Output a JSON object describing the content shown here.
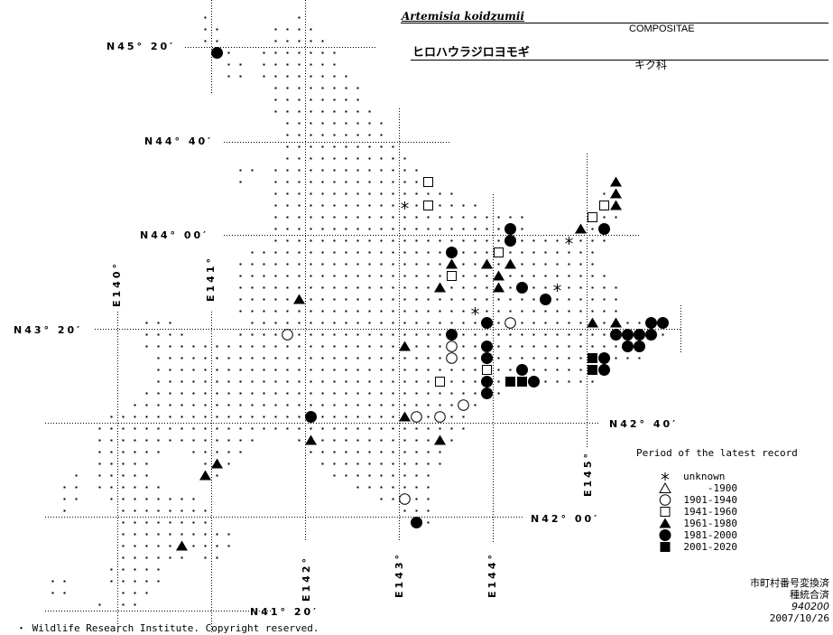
{
  "header": {
    "scientific_name": "Artemisia koidzumii",
    "family_latin": "COMPOSITAE",
    "japanese_name": "ヒロハウラジロヨモギ",
    "family_japanese": "キク科"
  },
  "graticule": {
    "latitudes": [
      "N45° 20′",
      "N44° 40′",
      "N44° 00′",
      "N43° 20′",
      "N42° 40′",
      "N42° 00′",
      "N41° 20′"
    ],
    "longitudes": [
      "E140°",
      "E141°",
      "E142°",
      "E143°",
      "E144°",
      "E145°"
    ]
  },
  "legend": {
    "title": "Period of the latest record",
    "items": [
      {
        "symbol": "asterisk",
        "label": "unknown"
      },
      {
        "symbol": "open-triangle",
        "label": "-1900"
      },
      {
        "symbol": "open-circle",
        "label": "1901-1940"
      },
      {
        "symbol": "open-square",
        "label": "1941-1960"
      },
      {
        "symbol": "filled-triangle",
        "label": "1961-1980"
      },
      {
        "symbol": "filled-circle",
        "label": "1981-2000"
      },
      {
        "symbol": "filled-square",
        "label": "2001-2020"
      }
    ]
  },
  "records": {
    "unknown": [
      [
        143.0625,
        44.2083
      ],
      [
        144.8125,
        43.9583
      ],
      [
        144.6875,
        43.625
      ],
      [
        143.8125,
        43.4583
      ]
    ],
    "-1900": [],
    "1901-1940": [
      [
        144.1875,
        43.375
      ],
      [
        143.5625,
        43.2083
      ],
      [
        143.5625,
        43.125
      ],
      [
        141.8125,
        43.2917
      ],
      [
        143.6875,
        42.7917
      ],
      [
        143.1875,
        42.7083
      ],
      [
        143.4375,
        42.7083
      ],
      [
        143.0625,
        42.125
      ]
    ],
    "1941-1960": [
      [
        143.3125,
        44.375
      ],
      [
        143.3125,
        44.2083
      ],
      [
        145.1875,
        44.2083
      ],
      [
        145.0625,
        44.125
      ],
      [
        144.0625,
        43.875
      ],
      [
        143.5625,
        43.7083
      ],
      [
        143.9375,
        43.0417
      ],
      [
        143.4375,
        42.9583
      ]
    ],
    "1961-1980": [
      [
        145.3125,
        44.375
      ],
      [
        145.3125,
        44.2917
      ],
      [
        145.3125,
        44.2083
      ],
      [
        144.9375,
        44.0417
      ],
      [
        143.5625,
        43.7917
      ],
      [
        143.9375,
        43.7917
      ],
      [
        144.1875,
        43.7917
      ],
      [
        144.0625,
        43.7083
      ],
      [
        143.4375,
        43.625
      ],
      [
        144.0625,
        43.625
      ],
      [
        141.9375,
        43.5417
      ],
      [
        145.0625,
        43.375
      ],
      [
        145.3125,
        43.375
      ],
      [
        143.0625,
        43.2083
      ],
      [
        143.0625,
        42.7083
      ],
      [
        142.0625,
        42.5417
      ],
      [
        143.4375,
        42.5417
      ],
      [
        141.0625,
        42.375
      ],
      [
        140.9375,
        42.2917
      ],
      [
        140.6875,
        41.7917
      ]
    ],
    "1981-2000": [
      [
        141.0625,
        45.2917
      ],
      [
        144.1875,
        44.0417
      ],
      [
        145.1875,
        44.0417
      ],
      [
        144.1875,
        43.9583
      ],
      [
        143.5625,
        43.875
      ],
      [
        144.3125,
        43.625
      ],
      [
        144.5625,
        43.5417
      ],
      [
        143.9375,
        43.375
      ],
      [
        145.6875,
        43.375
      ],
      [
        145.8125,
        43.375
      ],
      [
        143.5625,
        43.2917
      ],
      [
        145.3125,
        43.2917
      ],
      [
        145.4375,
        43.2917
      ],
      [
        145.5625,
        43.2917
      ],
      [
        145.6875,
        43.2917
      ],
      [
        143.9375,
        43.2083
      ],
      [
        145.4375,
        43.2083
      ],
      [
        145.5625,
        43.2083
      ],
      [
        143.9375,
        43.125
      ],
      [
        145.1875,
        43.125
      ],
      [
        144.3125,
        43.0417
      ],
      [
        145.1875,
        43.0417
      ],
      [
        143.9375,
        42.9583
      ],
      [
        144.4375,
        42.9583
      ],
      [
        143.9375,
        42.875
      ],
      [
        142.0625,
        42.7083
      ],
      [
        143.1875,
        41.9583
      ]
    ],
    "2001-2020": [
      [
        145.0625,
        43.125
      ],
      [
        145.0625,
        43.0417
      ],
      [
        144.1875,
        42.9583
      ],
      [
        144.3125,
        42.9583
      ]
    ]
  },
  "footer": {
    "status_line_1": "市町村番号変換済",
    "status_line_2": "種統合済",
    "code": "940200",
    "date": "2007/10/26",
    "copyright": "・ Wildlife Research Institute. Copyright reserved."
  }
}
